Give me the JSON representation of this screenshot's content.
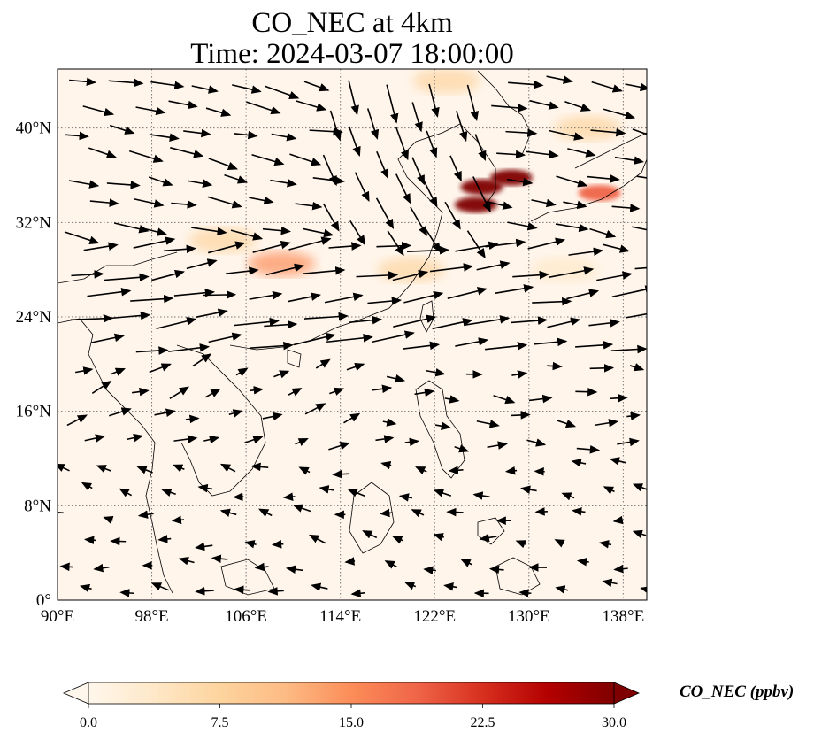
{
  "title": {
    "line1": "CO_NEC at 4km",
    "line2": "Time: 2024-03-07 18:00:00"
  },
  "map": {
    "lon_range": [
      90,
      140
    ],
    "lat_range": [
      0,
      45
    ],
    "lon_ticks": [
      {
        "value": 90,
        "label": "90°E"
      },
      {
        "value": 98,
        "label": "98°E"
      },
      {
        "value": 106,
        "label": "106°E"
      },
      {
        "value": 114,
        "label": "114°E"
      },
      {
        "value": 122,
        "label": "122°E"
      },
      {
        "value": 130,
        "label": "130°E"
      },
      {
        "value": 138,
        "label": "138°E"
      }
    ],
    "lat_ticks": [
      {
        "value": 0,
        "label": "0°"
      },
      {
        "value": 8,
        "label": "8°N"
      },
      {
        "value": 16,
        "label": "16°N"
      },
      {
        "value": 24,
        "label": "24°N"
      },
      {
        "value": 32,
        "label": "32°N"
      },
      {
        "value": 40,
        "label": "40°N"
      }
    ],
    "gridlines": true,
    "background_color": "#fff5eb",
    "variable": "CO_NEC",
    "level": "4km",
    "high_concentration_zones": [
      {
        "lon": 126,
        "lat": 35,
        "value": 30
      },
      {
        "lon": 128.5,
        "lat": 35.8,
        "value": 30
      },
      {
        "lon": 125.5,
        "lat": 33.5,
        "value": 30
      },
      {
        "lon": 136,
        "lat": 34.5,
        "value": 20
      },
      {
        "lon": 109,
        "lat": 28.5,
        "value": 14
      },
      {
        "lon": 104,
        "lat": 30.5,
        "value": 7
      },
      {
        "lon": 120,
        "lat": 28,
        "value": 6
      },
      {
        "lon": 133,
        "lat": 28,
        "value": 5
      },
      {
        "lon": 135,
        "lat": 40,
        "value": 6
      },
      {
        "lon": 123,
        "lat": 44,
        "value": 6
      }
    ]
  },
  "colorbar": {
    "label": "CO_NEC (ppbv)",
    "min": 0.0,
    "max": 30.0,
    "ticks": [
      "0.0",
      "7.5",
      "15.0",
      "22.5",
      "30.0"
    ],
    "colormap": "OrRd",
    "extend": "both",
    "colors": [
      "#fff7ec",
      "#fee8c8",
      "#fdd49e",
      "#fdbb84",
      "#fc8d59",
      "#ef6548",
      "#d7301f",
      "#b30000",
      "#7f0000"
    ]
  }
}
